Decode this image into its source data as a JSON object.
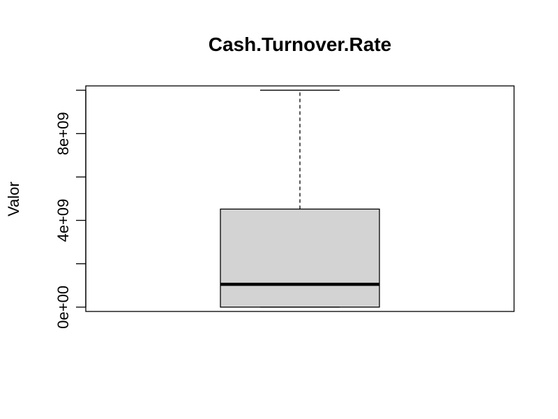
{
  "chart_data": {
    "type": "box",
    "title": "Cash.Turnover.Rate",
    "xlabel": "",
    "ylabel": "Valor",
    "ylim": [
      -200000000,
      10200000000
    ],
    "yticks": [
      0,
      2000000000,
      4000000000,
      6000000000,
      8000000000,
      10000000000
    ],
    "ytick_labels": [
      "0e+00",
      "",
      "4e+09",
      "",
      "8e+09",
      ""
    ],
    "box": {
      "min": 0,
      "q1": 0,
      "median": 1050000000,
      "q3": 4520000000,
      "max": 10000000000
    },
    "colors": {
      "box_fill": "#d3d3d3",
      "stroke": "#000000"
    }
  }
}
